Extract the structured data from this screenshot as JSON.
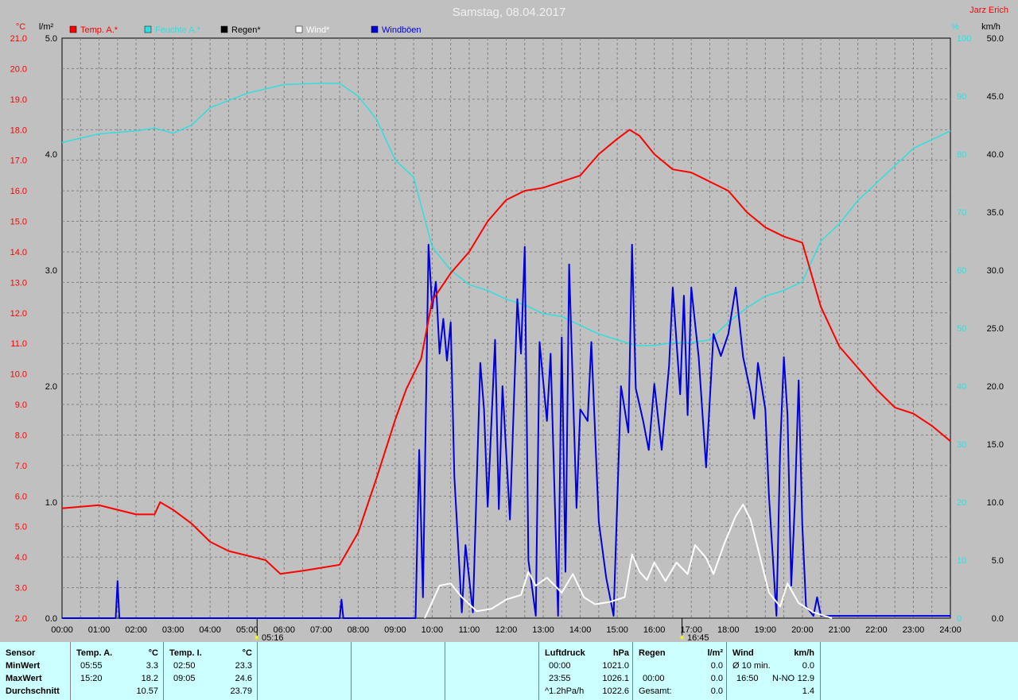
{
  "chart_data": {
    "type": "line",
    "title": "Samstag, 08.04.2017",
    "author": "Jarz Erich",
    "unit_temp": "°C",
    "unit_rain": "l/m²",
    "unit_hum": "%",
    "unit_wind": "km/h",
    "x_ticks": [
      "00:00",
      "01:00",
      "02:00",
      "03:00",
      "04:00",
      "05:00",
      "06:00",
      "07:00",
      "08:00",
      "09:00",
      "10:00",
      "11:00",
      "12:00",
      "13:00",
      "14:00",
      "15:00",
      "16:00",
      "17:00",
      "18:00",
      "19:00",
      "20:00",
      "21:00",
      "22:00",
      "23:00",
      "24:00"
    ],
    "temp_ticks": [
      "21.0",
      "20.0",
      "19.0",
      "18.0",
      "17.0",
      "16.0",
      "15.0",
      "14.0",
      "13.0",
      "12.0",
      "11.0",
      "10.0",
      "9.0",
      "8.0",
      "7.0",
      "6.0",
      "5.0",
      "4.0",
      "3.0",
      "2.0"
    ],
    "rain_ticks": [
      "5.0",
      "4.0",
      "3.0",
      "2.0",
      "1.0",
      "0.0"
    ],
    "hum_ticks": [
      "100",
      "90",
      "80",
      "70",
      "60",
      "50",
      "40",
      "30",
      "20",
      "10",
      "0"
    ],
    "wind_ticks": [
      "50.0",
      "45.0",
      "40.0",
      "35.0",
      "30.0",
      "25.0",
      "20.0",
      "15.0",
      "10.0",
      "5.0",
      "0.0"
    ],
    "ylim_temp": [
      2,
      21
    ],
    "ylim_rain": [
      0,
      5
    ],
    "ylim_hum": [
      0,
      100
    ],
    "ylim_wind": [
      0,
      50
    ],
    "sunrise": "05:16",
    "sunset": "16:45",
    "sunrise_h": 5.27,
    "sunset_h": 16.75,
    "series": [
      {
        "name": "Temp. A.*",
        "axis": "temp",
        "color": "#ff0000",
        "points": [
          [
            0,
            5.6
          ],
          [
            0.5,
            5.65
          ],
          [
            1,
            5.7
          ],
          [
            1.5,
            5.55
          ],
          [
            2,
            5.4
          ],
          [
            2.5,
            5.4
          ],
          [
            2.65,
            5.8
          ],
          [
            3,
            5.55
          ],
          [
            3.5,
            5.1
          ],
          [
            4,
            4.5
          ],
          [
            4.5,
            4.2
          ],
          [
            5,
            4.05
          ],
          [
            5.5,
            3.9
          ],
          [
            5.9,
            3.45
          ],
          [
            6.5,
            3.55
          ],
          [
            7,
            3.65
          ],
          [
            7.5,
            3.75
          ],
          [
            8,
            4.8
          ],
          [
            8.5,
            6.6
          ],
          [
            9,
            8.5
          ],
          [
            9.3,
            9.5
          ],
          [
            9.7,
            10.5
          ],
          [
            10,
            12.4
          ],
          [
            10.5,
            13.3
          ],
          [
            11,
            14.0
          ],
          [
            11.5,
            15.0
          ],
          [
            12,
            15.7
          ],
          [
            12.5,
            16.0
          ],
          [
            13,
            16.1
          ],
          [
            13.5,
            16.3
          ],
          [
            14,
            16.5
          ],
          [
            14.5,
            17.2
          ],
          [
            15,
            17.7
          ],
          [
            15.33,
            18.0
          ],
          [
            15.6,
            17.8
          ],
          [
            16,
            17.2
          ],
          [
            16.5,
            16.7
          ],
          [
            17,
            16.6
          ],
          [
            17.5,
            16.3
          ],
          [
            18,
            16.0
          ],
          [
            18.5,
            15.3
          ],
          [
            19,
            14.8
          ],
          [
            19.5,
            14.5
          ],
          [
            20,
            14.3
          ],
          [
            20.5,
            12.2
          ],
          [
            21,
            10.9
          ],
          [
            21.5,
            10.2
          ],
          [
            22,
            9.5
          ],
          [
            22.5,
            8.9
          ],
          [
            23,
            8.7
          ],
          [
            23.5,
            8.3
          ],
          [
            24,
            7.8
          ]
        ]
      },
      {
        "name": "Feuchte A.*",
        "axis": "hum",
        "color": "#33dddd",
        "points": [
          [
            0,
            82
          ],
          [
            1,
            83.5
          ],
          [
            2,
            84
          ],
          [
            2.5,
            84.5
          ],
          [
            3,
            83.6
          ],
          [
            3.5,
            85
          ],
          [
            4,
            88
          ],
          [
            5,
            90.5
          ],
          [
            6,
            92
          ],
          [
            7,
            92.2
          ],
          [
            7.5,
            92.2
          ],
          [
            8,
            90
          ],
          [
            8.5,
            86
          ],
          [
            9,
            79
          ],
          [
            9.5,
            76
          ],
          [
            10,
            64
          ],
          [
            10.5,
            60
          ],
          [
            11,
            57.5
          ],
          [
            11.5,
            56.5
          ],
          [
            12,
            55
          ],
          [
            12.5,
            54
          ],
          [
            13,
            52.5
          ],
          [
            13.5,
            52
          ],
          [
            14,
            50.5
          ],
          [
            14.5,
            49
          ],
          [
            15,
            48
          ],
          [
            15.5,
            47
          ],
          [
            16,
            47
          ],
          [
            16.5,
            47.5
          ],
          [
            17,
            47.5
          ],
          [
            17.5,
            48
          ],
          [
            18,
            51
          ],
          [
            18.5,
            53.5
          ],
          [
            19,
            55.5
          ],
          [
            19.5,
            56.5
          ],
          [
            20,
            58
          ],
          [
            20.5,
            65
          ],
          [
            21,
            68
          ],
          [
            21.5,
            72
          ],
          [
            22,
            75
          ],
          [
            22.5,
            78
          ],
          [
            23,
            81
          ],
          [
            24,
            84
          ]
        ]
      },
      {
        "name": "Regen*",
        "axis": "rain",
        "color": "#000000",
        "points": []
      },
      {
        "name": "Wind*",
        "axis": "wind",
        "color": "#ffffff",
        "points": [
          [
            9.8,
            0
          ],
          [
            10.2,
            2.8
          ],
          [
            10.5,
            3.0
          ],
          [
            10.8,
            1.8
          ],
          [
            11.2,
            0.6
          ],
          [
            11.6,
            0.8
          ],
          [
            12,
            1.6
          ],
          [
            12.4,
            2.0
          ],
          [
            12.6,
            4.0
          ],
          [
            12.8,
            2.8
          ],
          [
            13.1,
            3.5
          ],
          [
            13.5,
            2.2
          ],
          [
            13.8,
            3.8
          ],
          [
            14.1,
            1.8
          ],
          [
            14.4,
            1.2
          ],
          [
            14.8,
            1.4
          ],
          [
            15.2,
            1.8
          ],
          [
            15.4,
            5.5
          ],
          [
            15.6,
            4.0
          ],
          [
            15.8,
            3.3
          ],
          [
            16,
            4.8
          ],
          [
            16.3,
            3.2
          ],
          [
            16.6,
            4.8
          ],
          [
            16.9,
            3.8
          ],
          [
            17.1,
            6.3
          ],
          [
            17.4,
            5.2
          ],
          [
            17.6,
            3.8
          ],
          [
            17.9,
            6.5
          ],
          [
            18.2,
            8.8
          ],
          [
            18.4,
            9.8
          ],
          [
            18.6,
            8.5
          ],
          [
            18.8,
            6.0
          ],
          [
            19.1,
            2.2
          ],
          [
            19.4,
            1.0
          ],
          [
            19.6,
            3.0
          ],
          [
            19.9,
            1.3
          ],
          [
            20.3,
            0.5
          ],
          [
            20.8,
            0
          ]
        ]
      },
      {
        "name": "Windböen",
        "axis": "wind",
        "color": "#0000dd",
        "points": [
          [
            0,
            0
          ],
          [
            1.45,
            0
          ],
          [
            1.5,
            3.2
          ],
          [
            1.55,
            0
          ],
          [
            7.5,
            0
          ],
          [
            7.55,
            1.6
          ],
          [
            7.6,
            0
          ],
          [
            9.55,
            0
          ],
          [
            9.65,
            14.5
          ],
          [
            9.75,
            1.8
          ],
          [
            9.9,
            32.2
          ],
          [
            10,
            26.7
          ],
          [
            10.1,
            29.0
          ],
          [
            10.2,
            22.8
          ],
          [
            10.3,
            25.8
          ],
          [
            10.4,
            22.2
          ],
          [
            10.5,
            25.5
          ],
          [
            10.6,
            12.2
          ],
          [
            10.8,
            0.5
          ],
          [
            10.9,
            6.3
          ],
          [
            11.1,
            0.5
          ],
          [
            11.3,
            22.0
          ],
          [
            11.4,
            18.0
          ],
          [
            11.5,
            9.6
          ],
          [
            11.7,
            24.0
          ],
          [
            11.8,
            9.4
          ],
          [
            11.9,
            20.0
          ],
          [
            12.1,
            8.5
          ],
          [
            12.3,
            27.5
          ],
          [
            12.4,
            22.8
          ],
          [
            12.5,
            32.0
          ],
          [
            12.6,
            5.0
          ],
          [
            12.8,
            0.2
          ],
          [
            12.9,
            23.8
          ],
          [
            13.1,
            17.0
          ],
          [
            13.2,
            22.8
          ],
          [
            13.4,
            0.2
          ],
          [
            13.5,
            24.2
          ],
          [
            13.6,
            4.0
          ],
          [
            13.7,
            30.5
          ],
          [
            13.9,
            9.5
          ],
          [
            14,
            18.0
          ],
          [
            14.2,
            17.0
          ],
          [
            14.3,
            23.8
          ],
          [
            14.5,
            8.3
          ],
          [
            14.7,
            3.5
          ],
          [
            14.9,
            0.2
          ],
          [
            15.1,
            20.0
          ],
          [
            15.3,
            16.0
          ],
          [
            15.4,
            32.2
          ],
          [
            15.5,
            19.8
          ],
          [
            15.7,
            17.0
          ],
          [
            15.85,
            14.5
          ],
          [
            16,
            20.2
          ],
          [
            16.2,
            14.5
          ],
          [
            16.4,
            21.8
          ],
          [
            16.5,
            28.5
          ],
          [
            16.7,
            19.3
          ],
          [
            16.8,
            27.8
          ],
          [
            16.9,
            17.5
          ],
          [
            17,
            28.5
          ],
          [
            17.2,
            22.5
          ],
          [
            17.4,
            13.0
          ],
          [
            17.6,
            24.5
          ],
          [
            17.8,
            22.6
          ],
          [
            18,
            24.5
          ],
          [
            18.2,
            28.5
          ],
          [
            18.4,
            22.5
          ],
          [
            18.6,
            19.5
          ],
          [
            18.7,
            17.2
          ],
          [
            18.8,
            22.0
          ],
          [
            19,
            18.0
          ],
          [
            19.1,
            10.5
          ],
          [
            19.3,
            0.2
          ],
          [
            19.4,
            14.5
          ],
          [
            19.5,
            22.5
          ],
          [
            19.6,
            17.5
          ],
          [
            19.7,
            2.8
          ],
          [
            19.8,
            10.0
          ],
          [
            19.9,
            20.5
          ],
          [
            20,
            8.0
          ],
          [
            20.1,
            1.0
          ],
          [
            20.3,
            0.2
          ],
          [
            20.4,
            1.8
          ],
          [
            20.5,
            0.2
          ],
          [
            24,
            0.2
          ]
        ]
      }
    ]
  },
  "stats": {
    "sensor": {
      "label": "Sensor",
      "rows": [
        "MinWert",
        "MaxWert",
        "Durchschnitt"
      ]
    },
    "temp_a": {
      "label": "Temp. A.",
      "unit": "°C",
      "min_time": "05:55",
      "min_val": "3.3",
      "max_time": "15:20",
      "max_val": "18.2",
      "avg": "10.57"
    },
    "temp_i": {
      "label": "Temp. I.",
      "unit": "°C",
      "min_time": "02:50",
      "min_val": "23.3",
      "max_time": "09:05",
      "max_val": "24.6",
      "avg": "23.79"
    },
    "luftdruck": {
      "label": "Luftdruck",
      "unit": "hPa",
      "min_time": "00:00",
      "min_val": "1021.0",
      "max_time": "23:55",
      "max_val": "1026.1",
      "trend": "^1.2hPa/h",
      "avg": "1022.6"
    },
    "regen": {
      "label": "Regen",
      "unit": "l/m²",
      "max_time": "00:00",
      "max_val": "0.0",
      "min_val": "0.0",
      "total_label": "Gesamt:",
      "total": "0.0"
    },
    "wind": {
      "label": "Wind",
      "unit": "km/h",
      "avg10_label": "Ø 10 min.",
      "avg10": "0.0",
      "max_time": "16:50",
      "max_dir": "N-NO",
      "max_val": "12.9",
      "avg": "1.4"
    }
  }
}
